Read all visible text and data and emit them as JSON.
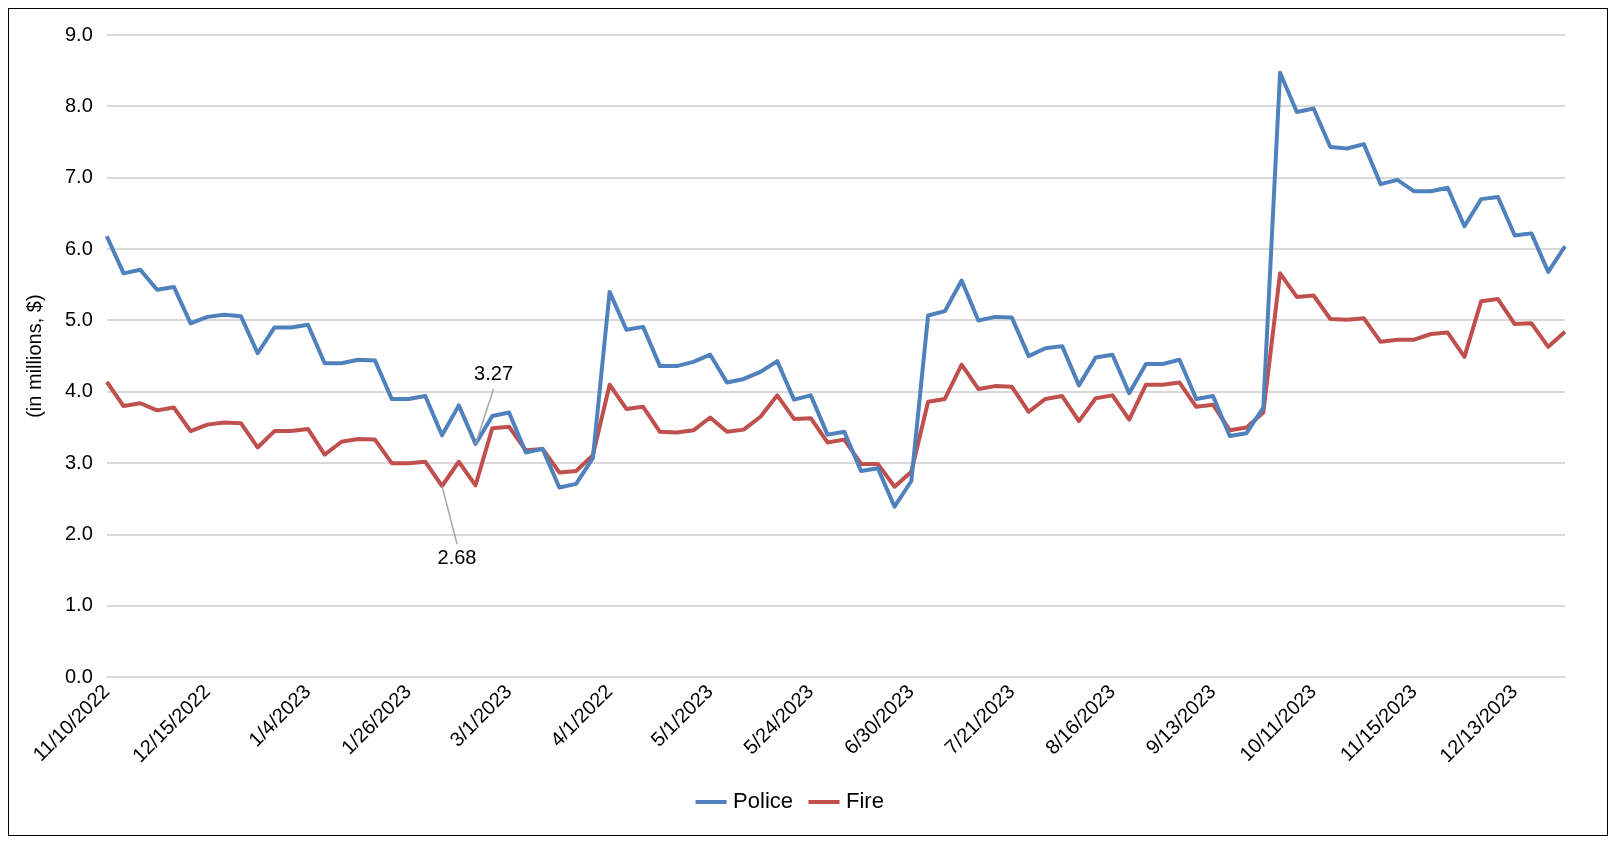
{
  "chart_data": {
    "type": "line",
    "ylabel": "(in millions, $)",
    "categories": [
      "11/10/2022",
      null,
      null,
      null,
      null,
      null,
      "12/15/2022",
      null,
      null,
      null,
      null,
      null,
      "1/4/2023",
      null,
      null,
      null,
      null,
      null,
      "1/26/2023",
      null,
      null,
      null,
      null,
      null,
      "3/1/2023",
      null,
      null,
      null,
      null,
      null,
      "4/1/2022",
      null,
      null,
      null,
      null,
      null,
      "5/1/2023",
      null,
      null,
      null,
      null,
      null,
      "5/24/2023",
      null,
      null,
      null,
      null,
      null,
      "6/30/2023",
      null,
      null,
      null,
      null,
      null,
      "7/21/2023",
      null,
      null,
      null,
      null,
      null,
      "8/16/2023",
      null,
      null,
      null,
      null,
      null,
      "9/13/2023",
      null,
      null,
      null,
      null,
      null,
      "10/11/2023",
      null,
      null,
      null,
      null,
      null,
      "11/15/2023",
      null,
      null,
      null,
      null,
      null,
      "12/13/2023",
      null,
      null,
      null
    ],
    "series": [
      {
        "name": "Police",
        "color": "#4f81bd",
        "values": [
          6.18,
          5.66,
          5.71,
          5.43,
          5.47,
          4.96,
          5.05,
          5.08,
          5.06,
          4.54,
          4.9,
          4.9,
          4.94,
          4.4,
          4.4,
          4.45,
          4.44,
          3.9,
          3.9,
          3.94,
          3.39,
          3.81,
          3.27,
          3.66,
          3.71,
          3.15,
          3.2,
          2.66,
          2.71,
          3.07,
          5.4,
          4.87,
          4.91,
          4.36,
          4.36,
          4.42,
          4.52,
          4.13,
          4.18,
          4.28,
          4.43,
          3.89,
          3.95,
          3.4,
          3.44,
          2.89,
          2.93,
          2.39,
          2.75,
          5.07,
          5.13,
          5.56,
          5.0,
          5.05,
          5.04,
          4.5,
          4.61,
          4.64,
          4.09,
          4.48,
          4.52,
          3.98,
          4.39,
          4.39,
          4.45,
          3.9,
          3.94,
          3.38,
          3.42,
          3.78,
          8.47,
          7.92,
          7.97,
          7.43,
          7.41,
          7.47,
          6.91,
          6.97,
          6.81,
          6.81,
          6.86,
          6.32,
          6.7,
          6.73,
          6.19,
          6.22,
          5.68,
          6.04
        ],
        "value_labels": [
          null,
          null,
          null,
          null,
          null,
          null,
          null,
          null,
          null,
          null,
          null,
          null,
          null,
          null,
          null,
          null,
          null,
          null,
          null,
          null,
          null,
          null,
          "3.27",
          null,
          null,
          null,
          null,
          null,
          null,
          null,
          null,
          null,
          null,
          null,
          null,
          null,
          null,
          null,
          null,
          null,
          null,
          null,
          null,
          null,
          null,
          null,
          null,
          null,
          null,
          null,
          null,
          null,
          null,
          null,
          null,
          null,
          null,
          null,
          null,
          null,
          null,
          null,
          null,
          null,
          null,
          null,
          null,
          null,
          null,
          null,
          null,
          null,
          null,
          null,
          null,
          null,
          null,
          null,
          null,
          null,
          null,
          null,
          null,
          null,
          null,
          null,
          null,
          null
        ]
      },
      {
        "name": "Fire",
        "color": "#c0504d",
        "values": [
          4.14,
          3.8,
          3.84,
          3.74,
          3.78,
          3.45,
          3.54,
          3.57,
          3.56,
          3.22,
          3.45,
          3.45,
          3.48,
          3.12,
          3.3,
          3.34,
          3.33,
          3.0,
          3.0,
          3.02,
          2.68,
          3.02,
          2.69,
          3.49,
          3.51,
          3.18,
          3.2,
          2.87,
          2.89,
          3.11,
          4.1,
          3.76,
          3.79,
          3.44,
          3.43,
          3.46,
          3.64,
          3.44,
          3.47,
          3.65,
          3.95,
          3.62,
          3.63,
          3.29,
          3.33,
          2.99,
          2.99,
          2.67,
          2.88,
          3.86,
          3.9,
          4.38,
          4.04,
          4.08,
          4.07,
          3.72,
          3.9,
          3.94,
          3.59,
          3.91,
          3.95,
          3.61,
          4.1,
          4.1,
          4.13,
          3.79,
          3.82,
          3.46,
          3.5,
          3.71,
          5.66,
          5.33,
          5.35,
          5.02,
          5.01,
          5.03,
          4.7,
          4.73,
          4.73,
          4.81,
          4.83,
          4.49,
          5.27,
          5.3,
          4.95,
          4.96,
          4.63,
          4.84
        ],
        "value_labels": [
          null,
          null,
          null,
          null,
          null,
          null,
          null,
          null,
          null,
          null,
          null,
          null,
          null,
          null,
          null,
          null,
          null,
          null,
          null,
          null,
          "2.68",
          null,
          null,
          null,
          null,
          null,
          null,
          null,
          null,
          null,
          null,
          null,
          null,
          null,
          null,
          null,
          null,
          null,
          null,
          null,
          null,
          null,
          null,
          null,
          null,
          null,
          null,
          null,
          null,
          null,
          null,
          null,
          null,
          null,
          null,
          null,
          null,
          null,
          null,
          null,
          null,
          null,
          null,
          null,
          null,
          null,
          null,
          null,
          null,
          null,
          null,
          null,
          null,
          null,
          null,
          null,
          null,
          null,
          null,
          null,
          null,
          null,
          null,
          null,
          null,
          null,
          null,
          null
        ]
      }
    ],
    "ylim": [
      0,
      9
    ],
    "yticks": [
      {
        "value": 0,
        "label": "0.0"
      },
      {
        "value": 1,
        "label": "1.0"
      },
      {
        "value": 2,
        "label": "2.0"
      },
      {
        "value": 3,
        "label": "3.0"
      },
      {
        "value": 4,
        "label": "4.0"
      },
      {
        "value": 5,
        "label": "5.0"
      },
      {
        "value": 6,
        "label": "6.0"
      },
      {
        "value": 7,
        "label": "7.0"
      },
      {
        "value": 8,
        "label": "8.0"
      },
      {
        "value": 9,
        "label": "9.0"
      }
    ],
    "grid": "y",
    "legend": "bottom",
    "marker": "none",
    "line_style": "solid"
  }
}
